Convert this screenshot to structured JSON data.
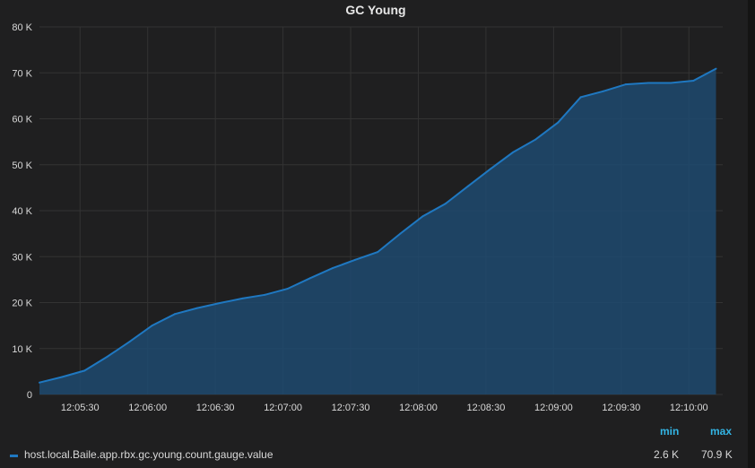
{
  "panel": {
    "title": "GC Young"
  },
  "legend": {
    "min_header": "min",
    "max_header": "max",
    "series_name": "host.local.Baile.app.rbx.gc.young.count.gauge.value",
    "series_min": "2.6 K",
    "series_max": "70.9 K"
  },
  "colors": {
    "line": "#1f78c1",
    "fill": "#1f4a70",
    "grid": "#333333",
    "legend_header": "#33b5e5"
  },
  "chart_data": {
    "type": "area",
    "title": "GC Young",
    "xlabel": "",
    "ylabel": "",
    "x_ticks": [
      "12:05:30",
      "12:06:00",
      "12:06:30",
      "12:07:00",
      "12:07:30",
      "12:08:00",
      "12:08:30",
      "12:09:00",
      "12:09:30",
      "12:10:00"
    ],
    "y_ticks": [
      "0",
      "10 K",
      "20 K",
      "30 K",
      "40 K",
      "50 K",
      "60 K",
      "70 K",
      "80 K"
    ],
    "xlim": [
      "12:05:12",
      "12:10:15"
    ],
    "ylim": [
      0,
      80000
    ],
    "grid": true,
    "legend_position": "bottom",
    "series": [
      {
        "name": "host.local.Baile.app.rbx.gc.young.count.gauge.value",
        "x": [
          "12:05:12",
          "12:05:22",
          "12:05:32",
          "12:05:42",
          "12:05:52",
          "12:06:02",
          "12:06:12",
          "12:06:22",
          "12:06:32",
          "12:06:42",
          "12:06:52",
          "12:07:02",
          "12:07:12",
          "12:07:22",
          "12:07:32",
          "12:07:42",
          "12:07:52",
          "12:08:02",
          "12:08:12",
          "12:08:22",
          "12:08:32",
          "12:08:42",
          "12:08:52",
          "12:09:02",
          "12:09:12",
          "12:09:22",
          "12:09:32",
          "12:09:42",
          "12:09:52",
          "12:10:02",
          "12:10:12"
        ],
        "y": [
          2600,
          3800,
          5200,
          8200,
          11500,
          15000,
          17500,
          18800,
          19900,
          20900,
          21700,
          23000,
          25300,
          27500,
          29300,
          31000,
          35000,
          38800,
          41500,
          45300,
          49100,
          52700,
          55500,
          59200,
          64700,
          66000,
          67500,
          67800,
          67800,
          68300,
          70900
        ]
      }
    ]
  }
}
